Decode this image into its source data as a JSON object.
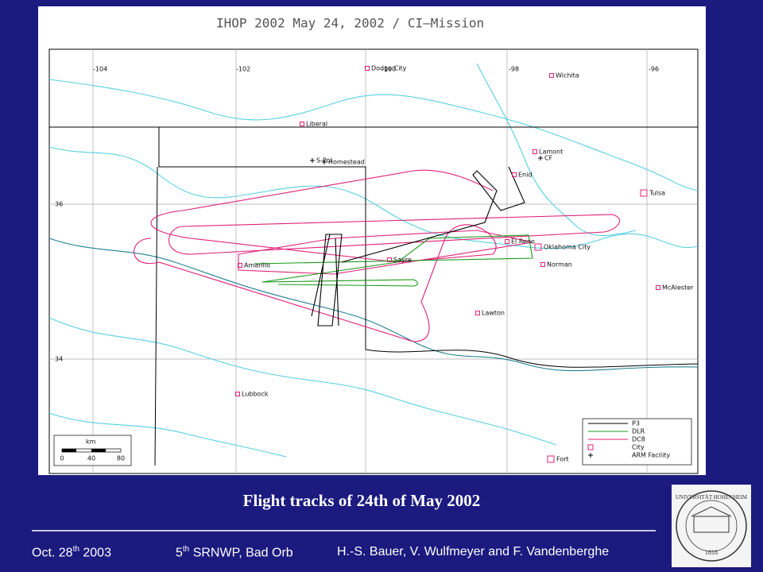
{
  "map": {
    "title": "IHOP 2002 May 24, 2002 / CI—Mission",
    "longitude_labels": [
      "-104",
      "-102",
      "-100",
      "-98",
      "-96"
    ],
    "latitude_labels": [
      "36",
      "34"
    ],
    "places": [
      "Dodge City",
      "Wichita",
      "Liberal",
      "Lamont",
      "CF",
      "Enid",
      "S-Pol",
      "Homestead",
      "Tulsa",
      "El Reno",
      "Oklahoma City",
      "Sayre",
      "Amarillo",
      "Norman",
      "McAlester",
      "Lawton",
      "Lubbock",
      "Fort"
    ],
    "legend": [
      {
        "label": "P3",
        "color": "#000000"
      },
      {
        "label": "DLR",
        "color": "#1a9a1a"
      },
      {
        "label": "DC8",
        "color": "#e0207a"
      },
      {
        "label": "City",
        "color": "#e0207a"
      },
      {
        "label": "ARM Facility",
        "color": "#000000"
      }
    ],
    "scale": {
      "unit": "km",
      "labels": [
        "0",
        "40",
        "80"
      ]
    }
  },
  "caption": "Flight tracks of 24th of May 2002",
  "footer": {
    "date": {
      "main": "Oct. 28",
      "sup": "th",
      "tail": " 2003"
    },
    "venue": {
      "main": "5",
      "sup": "th",
      "tail": " SRNWP, Bad Orb"
    },
    "authors": "H.-S. Bauer, V. Wulfmeyer and F. Vandenberghe"
  },
  "logo": {
    "text": "UNIVERSITÄT HOHENHEIM",
    "year": "1818"
  }
}
